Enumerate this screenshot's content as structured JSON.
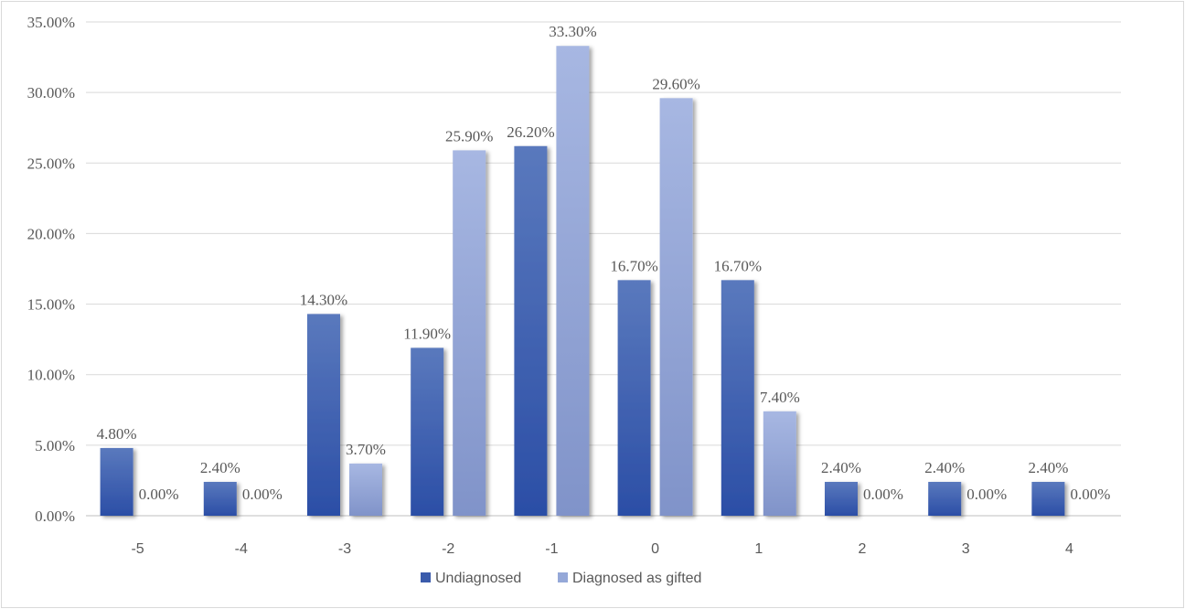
{
  "chart_data": {
    "type": "bar",
    "categories": [
      "-5",
      "-4",
      "-3",
      "-2",
      "-1",
      "0",
      "1",
      "2",
      "3",
      "4"
    ],
    "series": [
      {
        "name": "Undiagnosed",
        "values": [
          4.8,
          2.4,
          14.3,
          11.9,
          26.2,
          16.7,
          16.7,
          2.4,
          2.4,
          2.4
        ],
        "labels": [
          "4.80%",
          "2.40%",
          "14.30%",
          "11.90%",
          "26.20%",
          "16.70%",
          "16.70%",
          "2.40%",
          "2.40%",
          "2.40%"
        ],
        "color": "#3a5bab"
      },
      {
        "name": "Diagnosed as gifted",
        "values": [
          0.0,
          0.0,
          3.7,
          25.9,
          33.3,
          29.6,
          7.4,
          0.0,
          0.0,
          0.0
        ],
        "labels": [
          "0.00%",
          "0.00%",
          "3.70%",
          "25.90%",
          "33.30%",
          "29.60%",
          "7.40%",
          "0.00%",
          "0.00%",
          "0.00%"
        ],
        "color": "#95a8d8"
      }
    ],
    "ylim": [
      0,
      35
    ],
    "yticks": [
      "0.00%",
      "5.00%",
      "10.00%",
      "15.00%",
      "20.00%",
      "25.00%",
      "30.00%",
      "35.00%"
    ],
    "ytick_values": [
      0,
      5,
      10,
      15,
      20,
      25,
      30,
      35
    ],
    "grid": true,
    "legend_position": "bottom",
    "title": "",
    "xlabel": "",
    "ylabel": ""
  }
}
